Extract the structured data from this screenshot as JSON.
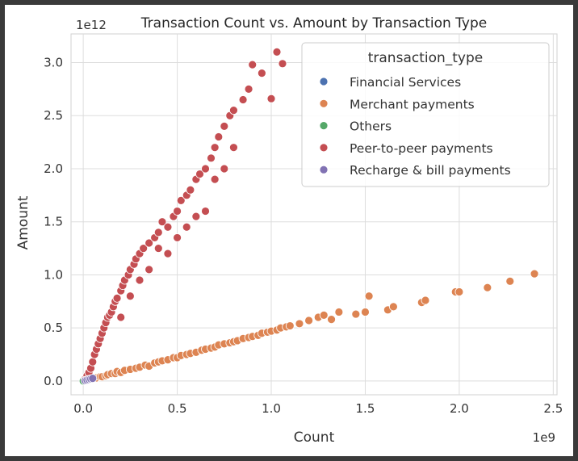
{
  "chart_data": {
    "type": "scatter",
    "title": "Transaction Count vs. Amount by Transaction Type",
    "xlabel": "Count",
    "ylabel": "Amount",
    "x_offset_text": "1e9",
    "y_offset_text": "1e12",
    "x_scale": 1000000000,
    "y_scale": 1000000000000,
    "xlim": [
      -0.065,
      2.52
    ],
    "ylim": [
      -0.13,
      3.27
    ],
    "x_ticks": [
      0.0,
      0.5,
      1.0,
      1.5,
      2.0,
      2.5
    ],
    "x_tick_labels": [
      "0.0",
      "0.5",
      "1.0",
      "1.5",
      "2.0",
      "2.5"
    ],
    "y_ticks": [
      0.0,
      0.5,
      1.0,
      1.5,
      2.0,
      2.5,
      3.0
    ],
    "y_tick_labels": [
      "0.0",
      "0.5",
      "1.0",
      "1.5",
      "2.0",
      "2.5",
      "3.0"
    ],
    "grid": true,
    "legend": {
      "title": "transaction_type",
      "placement": "top-right",
      "entries": [
        "Financial Services",
        "Merchant payments",
        "Others",
        "Peer-to-peer payments",
        "Recharge & bill payments"
      ]
    },
    "series": [
      {
        "name": "Financial Services",
        "color": "#4c72b0",
        "points": [
          [
            0.001,
            0.001
          ],
          [
            0.002,
            0.002
          ],
          [
            0.003,
            0.002
          ],
          [
            0.004,
            0.003
          ]
        ]
      },
      {
        "name": "Merchant payments",
        "color": "#dd8452",
        "points": [
          [
            0.03,
            0.01
          ],
          [
            0.05,
            0.02
          ],
          [
            0.07,
            0.03
          ],
          [
            0.09,
            0.04
          ],
          [
            0.1,
            0.04
          ],
          [
            0.12,
            0.05
          ],
          [
            0.13,
            0.06
          ],
          [
            0.15,
            0.07
          ],
          [
            0.17,
            0.07
          ],
          [
            0.18,
            0.09
          ],
          [
            0.2,
            0.08
          ],
          [
            0.22,
            0.1
          ],
          [
            0.25,
            0.11
          ],
          [
            0.28,
            0.12
          ],
          [
            0.3,
            0.13
          ],
          [
            0.33,
            0.15
          ],
          [
            0.35,
            0.14
          ],
          [
            0.38,
            0.17
          ],
          [
            0.4,
            0.18
          ],
          [
            0.42,
            0.19
          ],
          [
            0.45,
            0.2
          ],
          [
            0.48,
            0.22
          ],
          [
            0.5,
            0.22
          ],
          [
            0.52,
            0.24
          ],
          [
            0.55,
            0.25
          ],
          [
            0.57,
            0.26
          ],
          [
            0.6,
            0.27
          ],
          [
            0.63,
            0.29
          ],
          [
            0.65,
            0.3
          ],
          [
            0.68,
            0.31
          ],
          [
            0.7,
            0.32
          ],
          [
            0.72,
            0.34
          ],
          [
            0.75,
            0.35
          ],
          [
            0.78,
            0.36
          ],
          [
            0.8,
            0.37
          ],
          [
            0.82,
            0.38
          ],
          [
            0.85,
            0.4
          ],
          [
            0.88,
            0.41
          ],
          [
            0.9,
            0.42
          ],
          [
            0.93,
            0.43
          ],
          [
            0.95,
            0.45
          ],
          [
            0.98,
            0.46
          ],
          [
            1.0,
            0.47
          ],
          [
            1.03,
            0.48
          ],
          [
            1.05,
            0.5
          ],
          [
            1.08,
            0.51
          ],
          [
            1.1,
            0.52
          ],
          [
            1.15,
            0.54
          ],
          [
            1.2,
            0.57
          ],
          [
            1.25,
            0.6
          ],
          [
            1.28,
            0.62
          ],
          [
            1.32,
            0.58
          ],
          [
            1.36,
            0.65
          ],
          [
            1.45,
            0.63
          ],
          [
            1.5,
            0.65
          ],
          [
            1.52,
            0.8
          ],
          [
            1.62,
            0.67
          ],
          [
            1.65,
            0.7
          ],
          [
            1.8,
            0.74
          ],
          [
            1.82,
            0.76
          ],
          [
            1.98,
            0.84
          ],
          [
            2.0,
            0.84
          ],
          [
            2.15,
            0.88
          ],
          [
            2.27,
            0.94
          ],
          [
            2.4,
            1.01
          ]
        ]
      },
      {
        "name": "Others",
        "color": "#55a868",
        "points": [
          [
            0.0,
            0.0
          ]
        ]
      },
      {
        "name": "Peer-to-peer payments",
        "color": "#c44e52",
        "points": [
          [
            0.01,
            0.02
          ],
          [
            0.02,
            0.05
          ],
          [
            0.03,
            0.08
          ],
          [
            0.04,
            0.12
          ],
          [
            0.05,
            0.18
          ],
          [
            0.06,
            0.25
          ],
          [
            0.07,
            0.3
          ],
          [
            0.08,
            0.35
          ],
          [
            0.09,
            0.4
          ],
          [
            0.1,
            0.45
          ],
          [
            0.11,
            0.5
          ],
          [
            0.12,
            0.55
          ],
          [
            0.13,
            0.6
          ],
          [
            0.14,
            0.62
          ],
          [
            0.15,
            0.65
          ],
          [
            0.16,
            0.7
          ],
          [
            0.17,
            0.75
          ],
          [
            0.18,
            0.78
          ],
          [
            0.2,
            0.85
          ],
          [
            0.21,
            0.9
          ],
          [
            0.22,
            0.95
          ],
          [
            0.24,
            1.0
          ],
          [
            0.25,
            1.05
          ],
          [
            0.27,
            1.1
          ],
          [
            0.28,
            1.15
          ],
          [
            0.3,
            1.2
          ],
          [
            0.32,
            1.25
          ],
          [
            0.35,
            1.3
          ],
          [
            0.38,
            1.35
          ],
          [
            0.4,
            1.4
          ],
          [
            0.42,
            1.5
          ],
          [
            0.45,
            1.45
          ],
          [
            0.48,
            1.55
          ],
          [
            0.5,
            1.6
          ],
          [
            0.52,
            1.7
          ],
          [
            0.55,
            1.75
          ],
          [
            0.57,
            1.8
          ],
          [
            0.6,
            1.9
          ],
          [
            0.62,
            1.95
          ],
          [
            0.65,
            2.0
          ],
          [
            0.68,
            2.1
          ],
          [
            0.7,
            2.2
          ],
          [
            0.72,
            2.3
          ],
          [
            0.75,
            2.4
          ],
          [
            0.78,
            2.5
          ],
          [
            0.8,
            2.55
          ],
          [
            0.85,
            2.65
          ],
          [
            0.88,
            2.75
          ],
          [
            0.9,
            2.98
          ],
          [
            0.95,
            2.9
          ],
          [
            1.0,
            2.66
          ],
          [
            1.03,
            3.1
          ],
          [
            1.06,
            2.99
          ],
          [
            0.4,
            1.25
          ],
          [
            0.45,
            1.2
          ],
          [
            0.5,
            1.35
          ],
          [
            0.55,
            1.45
          ],
          [
            0.6,
            1.55
          ],
          [
            0.65,
            1.6
          ],
          [
            0.7,
            1.9
          ],
          [
            0.75,
            2.0
          ],
          [
            0.8,
            2.2
          ],
          [
            0.3,
            0.95
          ],
          [
            0.35,
            1.05
          ],
          [
            0.25,
            0.8
          ],
          [
            0.2,
            0.6
          ]
        ]
      },
      {
        "name": "Recharge & bill payments",
        "color": "#8172b3",
        "points": [
          [
            0.01,
            0.005
          ],
          [
            0.02,
            0.01
          ],
          [
            0.03,
            0.015
          ],
          [
            0.04,
            0.02
          ],
          [
            0.05,
            0.025
          ]
        ]
      }
    ]
  }
}
